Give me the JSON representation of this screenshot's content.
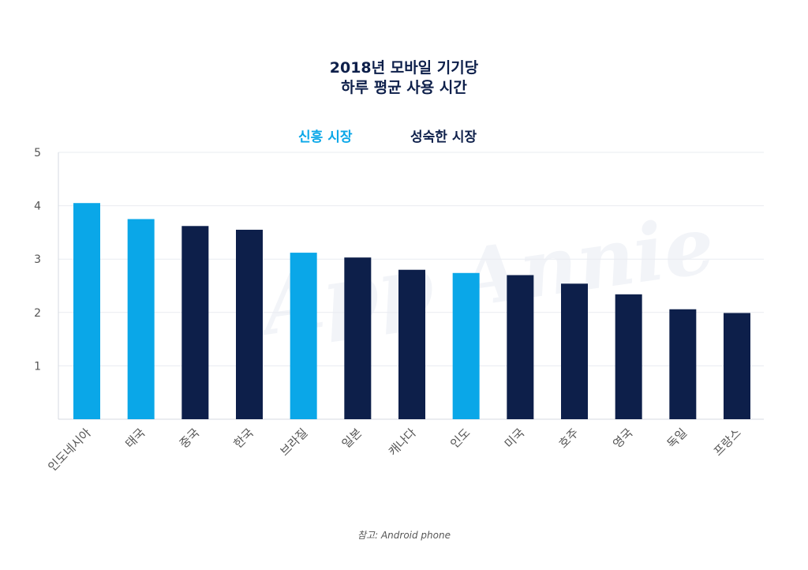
{
  "chart_data": {
    "type": "bar",
    "title_lines": [
      "2018년 모바일 기기당",
      "하루 평균 사용 시간"
    ],
    "legend": [
      {
        "name": "신흥 시장",
        "color": "#0aa7e8"
      },
      {
        "name": "성숙한 시장",
        "color": "#0d1f4a"
      }
    ],
    "legend_placement": "top-center",
    "categories": [
      "인도네시아",
      "태국",
      "중국",
      "한국",
      "브라질",
      "일본",
      "캐나다",
      "인도",
      "미국",
      "호주",
      "영국",
      "독일",
      "프랑스"
    ],
    "values": [
      4.05,
      3.75,
      3.62,
      3.55,
      3.12,
      3.03,
      2.8,
      2.74,
      2.7,
      2.54,
      2.34,
      2.06,
      1.99
    ],
    "market": [
      "신흥 시장",
      "신흥 시장",
      "성숙한 시장",
      "성숙한 시장",
      "신흥 시장",
      "성숙한 시장",
      "성숙한 시장",
      "신흥 시장",
      "성숙한 시장",
      "성숙한 시장",
      "성숙한 시장",
      "성숙한 시장",
      "성숙한 시장"
    ],
    "ylim": [
      0,
      5
    ],
    "yticks": [
      "1",
      "2",
      "3",
      "4",
      "5"
    ],
    "xlabel": "",
    "ylabel": "",
    "grid": true
  },
  "watermark": "App Annie",
  "footnote": "참고: Android phone"
}
